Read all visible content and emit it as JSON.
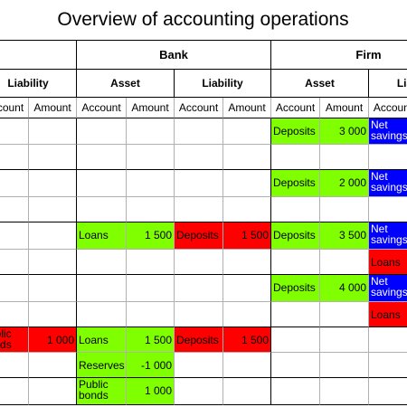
{
  "title": "Overview of accounting operations",
  "groups": [
    "Bank",
    "Firm"
  ],
  "sections": [
    "Liability",
    "Asset",
    "Liability",
    "Asset",
    "Liability"
  ],
  "columns": [
    "Account",
    "Amount",
    "Account",
    "Amount",
    "Account",
    "Amount",
    "Account",
    "Amount",
    "Account"
  ],
  "rows": [
    [
      null,
      null,
      null,
      null,
      null,
      null,
      {
        "text": "Deposits",
        "fill": "#80ff00"
      },
      {
        "text": "3 000",
        "fill": "#80ff00"
      },
      {
        "text": "Net savings",
        "fill": "#0000ff"
      }
    ],
    [
      null,
      null,
      null,
      null,
      null,
      null,
      null,
      null,
      null
    ],
    [
      null,
      null,
      null,
      null,
      null,
      null,
      {
        "text": "Deposits",
        "fill": "#80ff00"
      },
      {
        "text": "2 000",
        "fill": "#80ff00"
      },
      {
        "text": "Net savings",
        "fill": "#0000ff"
      }
    ],
    [
      null,
      null,
      null,
      null,
      null,
      null,
      null,
      null,
      null
    ],
    [
      null,
      null,
      {
        "text": "Loans",
        "fill": "#80ff00"
      },
      {
        "text": "1 500",
        "fill": "#80ff00"
      },
      {
        "text": "Deposits",
        "fill": "#ff0000"
      },
      {
        "text": "1 500",
        "fill": "#ff0000"
      },
      {
        "text": "Deposits",
        "fill": "#80ff00"
      },
      {
        "text": "3 500",
        "fill": "#80ff00"
      },
      {
        "text": "Net savings",
        "fill": "#0000ff"
      }
    ],
    [
      null,
      null,
      null,
      null,
      null,
      null,
      null,
      null,
      {
        "text": "Loans",
        "fill": "#ff0000"
      }
    ],
    [
      null,
      null,
      null,
      null,
      null,
      null,
      {
        "text": "Deposits",
        "fill": "#80ff00"
      },
      {
        "text": "4 000",
        "fill": "#80ff00"
      },
      {
        "text": "Net savings",
        "fill": "#0000ff"
      }
    ],
    [
      null,
      null,
      null,
      null,
      null,
      null,
      null,
      null,
      {
        "text": "Loans",
        "fill": "#ff0000"
      }
    ],
    [
      {
        "text": "Public bonds",
        "fill": "#ff0000"
      },
      {
        "text": "1 000",
        "fill": "#ff0000"
      },
      {
        "text": "Loans",
        "fill": "#80ff00"
      },
      {
        "text": "1 500",
        "fill": "#80ff00"
      },
      {
        "text": "Deposits",
        "fill": "#ff0000"
      },
      {
        "text": "1 500",
        "fill": "#ff0000"
      },
      null,
      null,
      null
    ],
    [
      null,
      null,
      {
        "text": "Reserves",
        "fill": "#80ff00"
      },
      {
        "text": "-1 000",
        "fill": "#80ff00"
      },
      null,
      null,
      null,
      null,
      null
    ],
    [
      null,
      null,
      {
        "text": "Public bonds",
        "fill": "#80ff00"
      },
      {
        "text": "1 000",
        "fill": "#80ff00"
      },
      null,
      null,
      null,
      null,
      null
    ]
  ]
}
